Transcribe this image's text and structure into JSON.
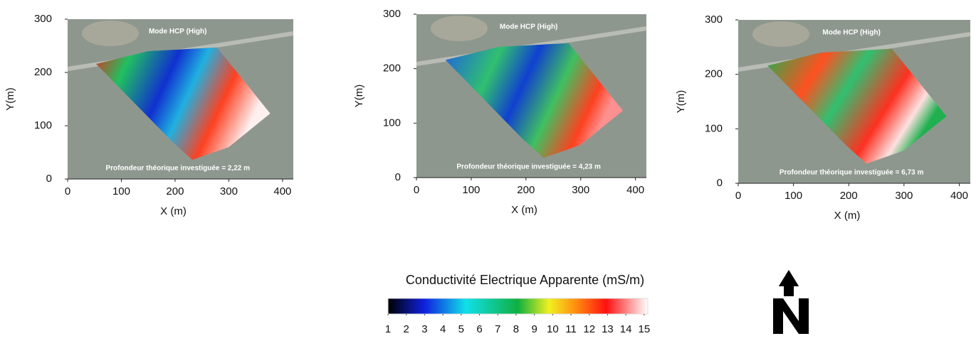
{
  "chart_data": [
    {
      "type": "map",
      "title": "Mode HCP (High)",
      "annotation": "Profondeur théorique investiguée = 2,22 m",
      "xlabel": "X (m)",
      "ylabel": "Y(m)",
      "xlim": [
        0,
        420
      ],
      "ylim": [
        0,
        300
      ],
      "xticks": [
        0,
        100,
        200,
        300,
        400
      ],
      "yticks": [
        0,
        100,
        200,
        300
      ]
    },
    {
      "type": "map",
      "title": "Mode HCP (High)",
      "annotation": "Profondeur théorique investiguée = 4,23 m",
      "xlabel": "X (m)",
      "ylabel": "Y(m)",
      "xlim": [
        0,
        420
      ],
      "ylim": [
        0,
        300
      ],
      "xticks": [
        0,
        100,
        200,
        300,
        400
      ],
      "yticks": [
        0,
        100,
        200,
        300
      ]
    },
    {
      "type": "map",
      "title": "Mode HCP (High)",
      "annotation": "Profondeur théorique investiguée = 6,73 m",
      "xlabel": "X (m)",
      "ylabel": "Y(m)",
      "xlim": [
        0,
        420
      ],
      "ylim": [
        0,
        300
      ],
      "xticks": [
        0,
        100,
        200,
        300,
        400
      ],
      "yticks": [
        0,
        100,
        200,
        300
      ]
    }
  ],
  "colorbar": {
    "title": "Conductivité Electrique Apparente (mS/m)",
    "lim": [
      1,
      15.2
    ],
    "ticks": [
      1,
      2,
      3,
      4,
      5,
      6,
      7,
      8,
      9,
      10,
      11,
      12,
      13,
      14,
      15
    ]
  }
}
